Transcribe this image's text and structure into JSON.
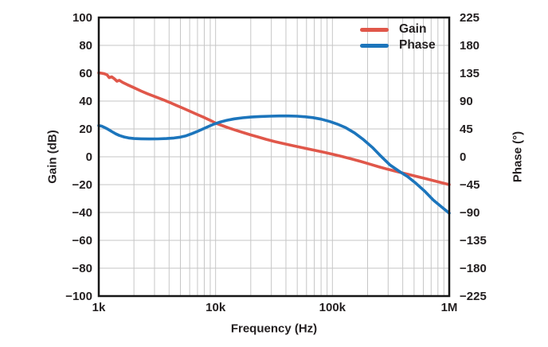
{
  "page": {
    "background": "#ffffff",
    "text_color": "#231f20",
    "grid_color": "#c6c6c6",
    "border_color": "#161616"
  },
  "legend": {
    "position": "upper right",
    "items": [
      {
        "label": "Gain",
        "color": "#e0574a"
      },
      {
        "label": "Phase",
        "color": "#1c75bc"
      }
    ]
  },
  "chart_data": {
    "type": "line",
    "title": "",
    "xlabel": "Frequency (Hz)",
    "ylabel_left": "Gain (dB)",
    "ylabel_right": "Phase (°)",
    "x_scale": "log",
    "xlim": [
      1000,
      1000000
    ],
    "x_ticks": [
      {
        "value": 1000,
        "label": "1k"
      },
      {
        "value": 10000,
        "label": "10k"
      },
      {
        "value": 100000,
        "label": "100k"
      },
      {
        "value": 1000000,
        "label": "1M"
      }
    ],
    "y_left": {
      "lim": [
        -100,
        100
      ],
      "ticks": [
        100,
        80,
        60,
        40,
        20,
        0,
        -20,
        -40,
        -60,
        -80,
        -100
      ]
    },
    "y_right": {
      "lim": [
        -225,
        225
      ],
      "ticks": [
        225,
        180,
        135,
        90,
        45,
        0,
        -45,
        -90,
        -135,
        -180,
        -225
      ]
    },
    "grid": true,
    "legend_position": "upper right",
    "series": [
      {
        "name": "Gain",
        "axis": "left",
        "color": "#e0574a",
        "units": "dB",
        "points": [
          [
            1000,
            60.2
          ],
          [
            1060,
            60
          ],
          [
            1120,
            59.6
          ],
          [
            1180,
            58.8
          ],
          [
            1230,
            56.8
          ],
          [
            1290,
            57.4
          ],
          [
            1360,
            56
          ],
          [
            1430,
            54.3
          ],
          [
            1500,
            54.9
          ],
          [
            1600,
            53.4
          ],
          [
            1750,
            51.8
          ],
          [
            2000,
            49.6
          ],
          [
            2300,
            47.2
          ],
          [
            2600,
            45.3
          ],
          [
            3000,
            43.3
          ],
          [
            3500,
            41.2
          ],
          [
            4000,
            39.2
          ],
          [
            4600,
            37
          ],
          [
            5300,
            34.8
          ],
          [
            6000,
            32.8
          ],
          [
            7000,
            30.3
          ],
          [
            8000,
            28.2
          ],
          [
            9000,
            26.2
          ],
          [
            10000,
            24.2
          ],
          [
            11500,
            22.3
          ],
          [
            13000,
            20.7
          ],
          [
            15000,
            19
          ],
          [
            17500,
            17.2
          ],
          [
            20000,
            15.7
          ],
          [
            23000,
            14.3
          ],
          [
            27000,
            12.6
          ],
          [
            32000,
            10.9
          ],
          [
            38000,
            9.5
          ],
          [
            45000,
            8.2
          ],
          [
            55000,
            6.6
          ],
          [
            70000,
            4.7
          ],
          [
            85000,
            3.2
          ],
          [
            100000,
            1.9
          ],
          [
            120000,
            0.3
          ],
          [
            145000,
            -1.5
          ],
          [
            175000,
            -3.4
          ],
          [
            210000,
            -5.3
          ],
          [
            250000,
            -7.2
          ],
          [
            300000,
            -9
          ],
          [
            360000,
            -10.7
          ],
          [
            430000,
            -12.3
          ],
          [
            520000,
            -14
          ],
          [
            620000,
            -15.6
          ],
          [
            740000,
            -17.2
          ],
          [
            870000,
            -18.7
          ],
          [
            1000000,
            -20
          ]
        ]
      },
      {
        "name": "Phase",
        "axis": "right",
        "color": "#1c75bc",
        "units": "deg",
        "points": [
          [
            1000,
            50.5
          ],
          [
            1060,
            49.5
          ],
          [
            1120,
            47.5
          ],
          [
            1200,
            44.5
          ],
          [
            1300,
            40.5
          ],
          [
            1400,
            37
          ],
          [
            1500,
            34.5
          ],
          [
            1650,
            32
          ],
          [
            1800,
            30.5
          ],
          [
            2000,
            29.5
          ],
          [
            2300,
            29
          ],
          [
            2700,
            28.8
          ],
          [
            3200,
            28.9
          ],
          [
            3800,
            29.4
          ],
          [
            4400,
            30.3
          ],
          [
            5000,
            31.8
          ],
          [
            5600,
            34
          ],
          [
            6300,
            37.5
          ],
          [
            7000,
            41
          ],
          [
            7800,
            45
          ],
          [
            8700,
            49
          ],
          [
            9700,
            52.8
          ],
          [
            11000,
            56.3
          ],
          [
            12500,
            59
          ],
          [
            14500,
            61.3
          ],
          [
            17000,
            63
          ],
          [
            20000,
            64.2
          ],
          [
            24000,
            65.1
          ],
          [
            29000,
            65.6
          ],
          [
            35000,
            65.9
          ],
          [
            42000,
            66
          ],
          [
            50000,
            65.6
          ],
          [
            58000,
            64.7
          ],
          [
            68000,
            63.2
          ],
          [
            80000,
            60.8
          ],
          [
            95000,
            57
          ],
          [
            110000,
            52.8
          ],
          [
            130000,
            47
          ],
          [
            155000,
            38.5
          ],
          [
            185000,
            27.5
          ],
          [
            220000,
            15
          ],
          [
            260000,
            1
          ],
          [
            310000,
            -13
          ],
          [
            370000,
            -23
          ],
          [
            440000,
            -32
          ],
          [
            520000,
            -43
          ],
          [
            620000,
            -56
          ],
          [
            730000,
            -70
          ],
          [
            860000,
            -81
          ],
          [
            1000000,
            -91
          ]
        ]
      }
    ]
  }
}
